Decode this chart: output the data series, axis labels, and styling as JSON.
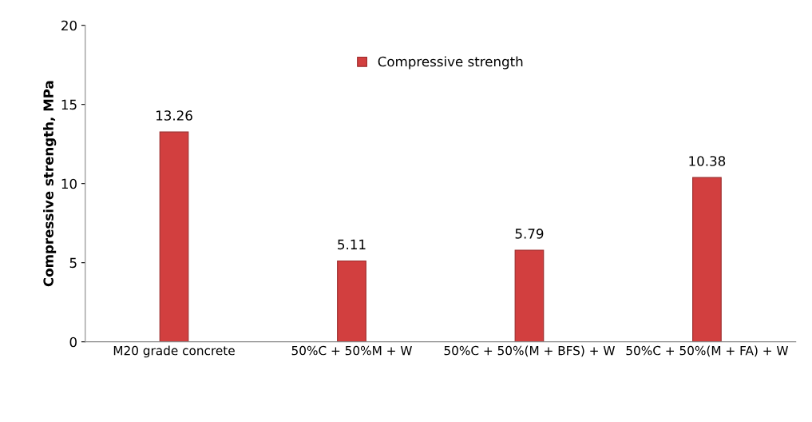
{
  "chart_data": {
    "type": "bar",
    "ylabel": "Compressive strength, MPa",
    "categories": [
      "M20 grade concrete",
      "50%C + 50%M + W",
      "50%C + 50%(M + BFS) + W",
      "50%C + 50%(M + FA) + W"
    ],
    "series": [
      {
        "name": "Compressive strength",
        "color": "#d23f3f",
        "values": [
          13.26,
          5.11,
          5.79,
          10.38
        ]
      }
    ],
    "ylim": [
      0,
      20
    ],
    "yticks": [
      0,
      5,
      10,
      15,
      20
    ],
    "data_labels": true,
    "legend": "top",
    "grid": false
  }
}
